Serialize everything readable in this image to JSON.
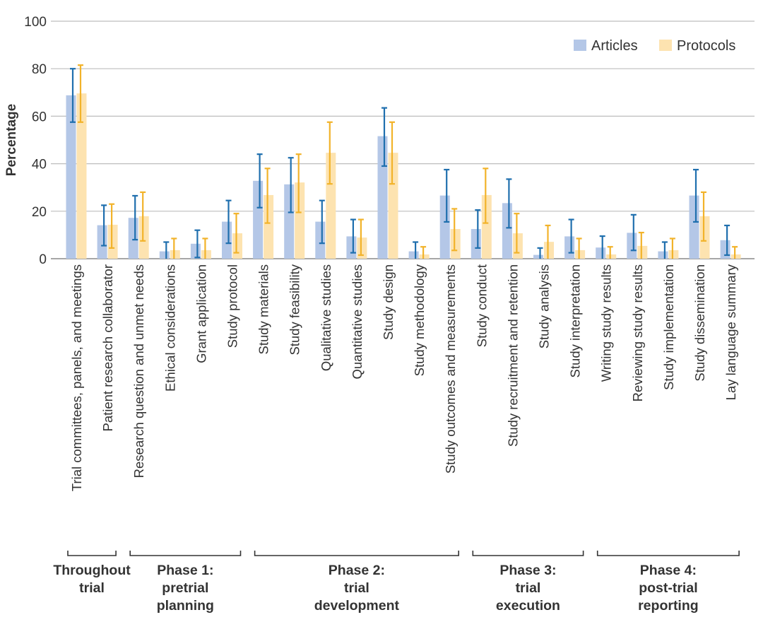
{
  "chart_data": {
    "type": "bar",
    "ylabel": "Percentage",
    "ylim": [
      0,
      100
    ],
    "yticks": [
      "0",
      "20",
      "40",
      "60",
      "80",
      "100"
    ],
    "grid": true,
    "legend_position": "top-right",
    "categories": [
      "Trial committees, panels, and meetings",
      "Patient research collaborator",
      "Research question and unmet needs",
      "Ethical considerations",
      "Grant application",
      "Study protocol",
      "Study materials",
      "Study feasibility",
      "Qualitative studies",
      "Quantitative studies",
      "Study design",
      "Study methodology",
      "Study outcomes and measurements",
      "Study conduct",
      "Study recruitment and retention",
      "Study analysis",
      "Study interpretation",
      "Writing study results",
      "Reviewing study results",
      "Study implementation",
      "Study dissemination",
      "Lay language summary"
    ],
    "series": [
      {
        "name": "Articles",
        "color": "#b4c7e7",
        "error_color": "#1f6fae",
        "values": [
          68.8,
          14.1,
          17.2,
          3.1,
          6.3,
          15.6,
          32.8,
          31.3,
          15.6,
          9.4,
          51.6,
          3.1,
          26.6,
          12.5,
          23.4,
          1.6,
          9.4,
          4.7,
          10.9,
          3.1,
          26.6,
          7.8
        ],
        "err_low": [
          57.5,
          5.5,
          8.0,
          0.0,
          0.5,
          6.5,
          21.5,
          19.5,
          6.5,
          2.5,
          39.0,
          0.0,
          15.5,
          4.5,
          13.0,
          0.0,
          2.5,
          0.0,
          3.5,
          0.0,
          15.5,
          1.5
        ],
        "err_high": [
          80.0,
          22.5,
          26.5,
          7.0,
          12.0,
          24.5,
          44.0,
          42.5,
          24.5,
          16.5,
          63.5,
          7.0,
          37.5,
          20.5,
          33.5,
          4.5,
          16.5,
          9.5,
          18.5,
          7.0,
          37.5,
          14.0
        ]
      },
      {
        "name": "Protocols",
        "color": "#fde3b0",
        "error_color": "#f2b32a",
        "values": [
          69.6,
          14.3,
          17.9,
          3.6,
          3.6,
          10.7,
          26.8,
          32.1,
          44.6,
          8.9,
          44.6,
          1.8,
          12.5,
          26.8,
          10.7,
          7.1,
          3.6,
          1.8,
          5.4,
          3.6,
          17.9,
          1.8
        ],
        "err_low": [
          57.5,
          4.5,
          7.5,
          0.0,
          0.0,
          2.5,
          15.0,
          19.5,
          31.5,
          1.5,
          31.5,
          0.0,
          3.5,
          15.0,
          2.5,
          0.0,
          0.0,
          0.0,
          0.0,
          0.0,
          7.5,
          0.0
        ],
        "err_high": [
          81.5,
          23.0,
          28.0,
          8.5,
          8.5,
          19.0,
          38.0,
          44.0,
          57.5,
          16.5,
          57.5,
          5.0,
          21.0,
          38.0,
          19.0,
          14.0,
          8.5,
          5.0,
          11.0,
          8.5,
          28.0,
          5.0
        ]
      }
    ],
    "phases": [
      {
        "lines": [
          "Throughout",
          "trial"
        ],
        "start": 0,
        "end": 1
      },
      {
        "lines": [
          "Phase 1:",
          "pretrial",
          "planning"
        ],
        "start": 2,
        "end": 5
      },
      {
        "lines": [
          "Phase 2:",
          "trial",
          "development"
        ],
        "start": 6,
        "end": 12
      },
      {
        "lines": [
          "Phase 3:",
          "trial",
          "execution"
        ],
        "start": 13,
        "end": 16
      },
      {
        "lines": [
          "Phase 4:",
          "post-trial",
          "reporting"
        ],
        "start": 17,
        "end": 21
      }
    ]
  }
}
